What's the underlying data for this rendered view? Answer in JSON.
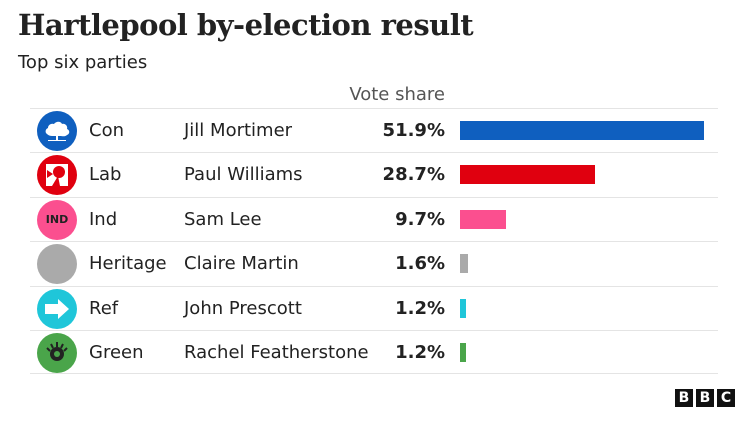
{
  "chart_data": {
    "type": "bar",
    "title": "Hartlepool by-election result",
    "subtitle": "Top six parties",
    "column_header": "Vote share",
    "xlim": [
      0,
      51.9
    ],
    "grid": false,
    "rows": [
      {
        "party": "Con",
        "candidate": "Jill Mortimer",
        "value": 51.9,
        "label": "51.9%",
        "color": "#0f5fbf",
        "icon": "oak-tree-icon"
      },
      {
        "party": "Lab",
        "candidate": "Paul Williams",
        "value": 28.7,
        "label": "28.7%",
        "color": "#e0000f",
        "icon": "rose-icon"
      },
      {
        "party": "Ind",
        "candidate": "Sam Lee",
        "value": 9.7,
        "label": "9.7%",
        "color": "#fb4f8f",
        "icon": "ind-badge",
        "icon_text": "IND"
      },
      {
        "party": "Heritage",
        "candidate": "Claire Martin",
        "value": 1.6,
        "label": "1.6%",
        "color": "#aaaaaa",
        "icon": "grey-circle-icon"
      },
      {
        "party": "Ref",
        "candidate": "John Prescott",
        "value": 1.2,
        "label": "1.2%",
        "color": "#1fc6d9",
        "icon": "arrow-right-icon"
      },
      {
        "party": "Green",
        "candidate": "Rachel Featherstone",
        "value": 1.2,
        "label": "1.2%",
        "color": "#4aa54a",
        "icon": "green-globe-icon"
      }
    ]
  },
  "source_logo": "BBC"
}
